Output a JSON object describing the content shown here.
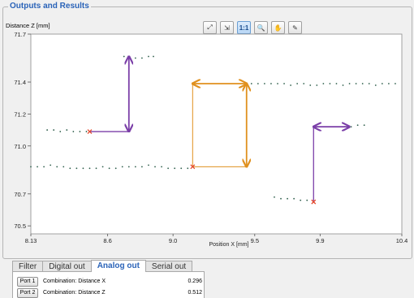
{
  "panel": {
    "title": "Outputs and Results"
  },
  "toolbar": {
    "buttons": [
      {
        "icon": "fit-view-icon",
        "glyph": "⤢"
      },
      {
        "icon": "zoom-region-icon",
        "glyph": "⇲"
      },
      {
        "icon": "one-to-one-icon",
        "glyph": "1:1"
      },
      {
        "icon": "magnifier-icon",
        "glyph": "🔍"
      },
      {
        "icon": "pan-hand-icon",
        "glyph": "✋"
      },
      {
        "icon": "eyedropper-icon",
        "glyph": "✎"
      }
    ],
    "active": "one-to-one-icon"
  },
  "chart_data": {
    "type": "scatter",
    "xlabel": "Position X [mm]",
    "ylabel": "Distance Z [mm]",
    "xlim": [
      8.13,
      10.4
    ],
    "ylim": [
      70.45,
      71.7
    ],
    "xticks": [
      "8.13",
      "8.6",
      "9.0",
      "9.5",
      "9.9",
      "10.4"
    ],
    "xtick_values": [
      8.13,
      8.6,
      9.0,
      9.5,
      9.9,
      10.4
    ],
    "yticks": [
      "70.5",
      "70.7",
      "71.0",
      "71.2",
      "71.4",
      "71.7"
    ],
    "ytick_values": [
      70.5,
      70.7,
      71.0,
      71.2,
      71.4,
      71.7
    ],
    "grid": false,
    "profile_segments": [
      {
        "x": [
          8.23,
          8.27,
          8.31,
          8.35,
          8.39,
          8.43,
          8.47
        ],
        "y": [
          71.1,
          71.1,
          71.09,
          71.1,
          71.09,
          71.09,
          71.09
        ]
      },
      {
        "x": [
          8.7,
          8.73,
          8.77,
          8.81,
          8.85,
          8.88
        ],
        "y": [
          71.56,
          71.55,
          71.55,
          71.55,
          71.56,
          71.56
        ]
      },
      {
        "x": [
          8.13,
          8.17,
          8.21,
          8.25,
          8.29,
          8.33,
          8.37,
          8.41,
          8.45,
          8.49,
          8.53,
          8.57,
          8.61,
          8.65,
          8.69,
          8.73,
          8.77,
          8.81,
          8.85,
          8.89,
          8.93,
          8.97,
          9.01,
          9.05,
          9.09
        ],
        "y": [
          70.87,
          70.87,
          70.87,
          70.88,
          70.87,
          70.87,
          70.86,
          70.86,
          70.86,
          70.86,
          70.86,
          70.87,
          70.86,
          70.86,
          70.87,
          70.87,
          70.87,
          70.87,
          70.88,
          70.87,
          70.87,
          70.86,
          70.86,
          70.86,
          70.86
        ]
      },
      {
        "x": [
          9.44,
          9.48,
          9.52,
          9.56,
          9.6,
          9.64,
          9.68,
          9.72,
          9.76,
          9.8,
          9.84,
          9.88,
          9.92,
          9.96,
          10.0,
          10.04,
          10.08,
          10.12,
          10.16,
          10.2,
          10.24,
          10.28,
          10.32,
          10.36
        ],
        "y": [
          71.39,
          71.39,
          71.39,
          71.39,
          71.39,
          71.39,
          71.39,
          71.38,
          71.39,
          71.39,
          71.38,
          71.38,
          71.39,
          71.39,
          71.39,
          71.38,
          71.39,
          71.39,
          71.39,
          71.39,
          71.38,
          71.39,
          71.39,
          71.39
        ]
      },
      {
        "x": [
          9.62,
          9.66,
          9.7,
          9.74,
          9.78,
          9.82,
          9.86
        ],
        "y": [
          70.68,
          70.67,
          70.67,
          70.67,
          70.66,
          70.66,
          70.65
        ]
      },
      {
        "x": [
          10.05,
          10.09,
          10.13,
          10.17
        ],
        "y": [
          71.12,
          71.12,
          71.13,
          71.13
        ]
      }
    ],
    "measurements": [
      {
        "color": "#7b3fa8",
        "orth": {
          "x1": 8.49,
          "y1": 71.09,
          "x2": 8.73,
          "y2": 71.09
        },
        "arrow": {
          "x1": 8.73,
          "y1": 71.09,
          "x2": 8.73,
          "y2": 71.56
        },
        "marker": {
          "x": 8.49,
          "y": 71.09
        }
      },
      {
        "color": "#e0901e",
        "box": {
          "x1": 9.12,
          "y1": 70.87,
          "x2": 9.45,
          "y2": 71.39
        },
        "arrow_h": {
          "x1": 9.12,
          "y1": 71.39,
          "x2": 9.45,
          "y2": 71.39
        },
        "arrow_v": {
          "x1": 9.45,
          "y1": 71.39,
          "x2": 9.45,
          "y2": 70.87
        },
        "marker": {
          "x": 9.12,
          "y": 70.87
        }
      },
      {
        "color": "#7b3fa8",
        "orth": {
          "x1": 9.86,
          "y1": 70.65,
          "x2": 9.86,
          "y2": 71.12
        },
        "arrow": {
          "x1": 9.86,
          "y1": 71.12,
          "x2": 10.08,
          "y2": 71.12
        },
        "marker": {
          "x": 9.86,
          "y": 70.65
        }
      }
    ]
  },
  "tabs": [
    {
      "label": "Filter",
      "active": false
    },
    {
      "label": "Digital out",
      "active": false
    },
    {
      "label": "Analog out",
      "active": true
    },
    {
      "label": "Serial out",
      "active": false
    }
  ],
  "results": [
    {
      "port": "Port 1",
      "label": "Combination: Distance X",
      "value": "0.296"
    },
    {
      "port": "Port 2",
      "label": "Combination: Distance Z",
      "value": "0.512"
    }
  ]
}
